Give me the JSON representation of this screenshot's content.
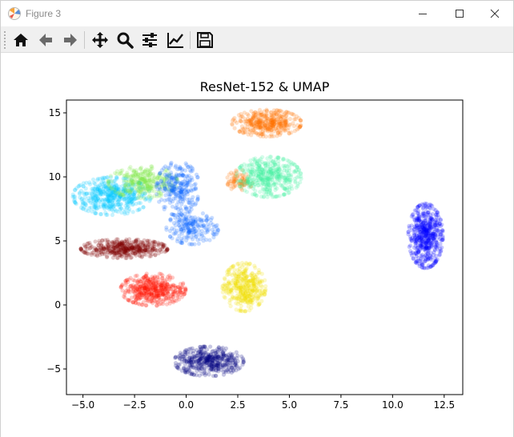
{
  "window": {
    "title": "Figure 3",
    "controls": [
      "minimize-icon",
      "maximize-icon",
      "close-icon"
    ]
  },
  "toolbar": {
    "buttons": [
      {
        "name": "home",
        "icon": "home-icon"
      },
      {
        "name": "back",
        "icon": "arrow-left-icon"
      },
      {
        "name": "forward",
        "icon": "arrow-right-icon"
      },
      {
        "name": "pan",
        "icon": "move-icon"
      },
      {
        "name": "zoom",
        "icon": "magnifier-icon"
      },
      {
        "name": "configure-subplots",
        "icon": "sliders-icon"
      },
      {
        "name": "edit-axis",
        "icon": "line-chart-icon"
      },
      {
        "name": "save",
        "icon": "floppy-disk-icon"
      }
    ]
  },
  "chart_data": {
    "type": "scatter",
    "title": "ResNet-152 & UMAP",
    "xlabel": "",
    "ylabel": "",
    "xlim": [
      -5.8,
      13.4
    ],
    "ylim": [
      -7.0,
      16.0
    ],
    "xticks": [
      -5.0,
      -2.5,
      0.0,
      2.5,
      5.0,
      7.5,
      10.0,
      12.5
    ],
    "xtick_labels": [
      "−5.0",
      "−2.5",
      "0.0",
      "2.5",
      "5.0",
      "7.5",
      "10.0",
      "12.5"
    ],
    "yticks": [
      -5,
      0,
      5,
      10,
      15
    ],
    "ytick_labels": [
      "−5",
      "0",
      "5",
      "10",
      "15"
    ],
    "grid": false,
    "legend": "none",
    "series": [
      {
        "color": "#00c8ff",
        "clusters": [
          {
            "cx": -3.6,
            "cy": 8.5,
            "sx": 0.9,
            "sy": 0.7,
            "n": 480
          }
        ]
      },
      {
        "color": "#7ee84a",
        "clusters": [
          {
            "cx": -2.1,
            "cy": 9.6,
            "sx": 0.8,
            "sy": 0.6,
            "n": 300
          }
        ]
      },
      {
        "color": "#0a64ff",
        "clusters": [
          {
            "cx": -0.4,
            "cy": 9.1,
            "sx": 0.5,
            "sy": 1.0,
            "n": 260
          },
          {
            "cx": 0.3,
            "cy": 6.0,
            "sx": 0.6,
            "sy": 0.6,
            "n": 200
          }
        ]
      },
      {
        "color": "#800000",
        "clusters": [
          {
            "cx": -3.0,
            "cy": 4.4,
            "sx": 1.0,
            "sy": 0.35,
            "n": 420
          }
        ]
      },
      {
        "color": "#ff1200",
        "clusters": [
          {
            "cx": -1.6,
            "cy": 1.2,
            "sx": 0.75,
            "sy": 0.6,
            "n": 440
          }
        ]
      },
      {
        "color": "#f0e000",
        "clusters": [
          {
            "cx": 2.8,
            "cy": 1.4,
            "sx": 0.5,
            "sy": 0.9,
            "n": 380
          }
        ]
      },
      {
        "color": "#000080",
        "clusters": [
          {
            "cx": 1.1,
            "cy": -4.4,
            "sx": 0.8,
            "sy": 0.55,
            "n": 420
          }
        ]
      },
      {
        "color": "#ff7200",
        "clusters": [
          {
            "cx": 3.9,
            "cy": 14.2,
            "sx": 0.8,
            "sy": 0.5,
            "n": 380
          },
          {
            "cx": 2.6,
            "cy": 9.7,
            "sx": 0.3,
            "sy": 0.4,
            "n": 80
          }
        ]
      },
      {
        "color": "#3ff0a0",
        "clusters": [
          {
            "cx": 4.0,
            "cy": 10.0,
            "sx": 0.75,
            "sy": 0.75,
            "n": 420
          }
        ]
      },
      {
        "color": "#0000ff",
        "clusters": [
          {
            "cx": 11.6,
            "cy": 5.4,
            "sx": 0.4,
            "sy": 1.2,
            "n": 520
          }
        ]
      }
    ]
  }
}
